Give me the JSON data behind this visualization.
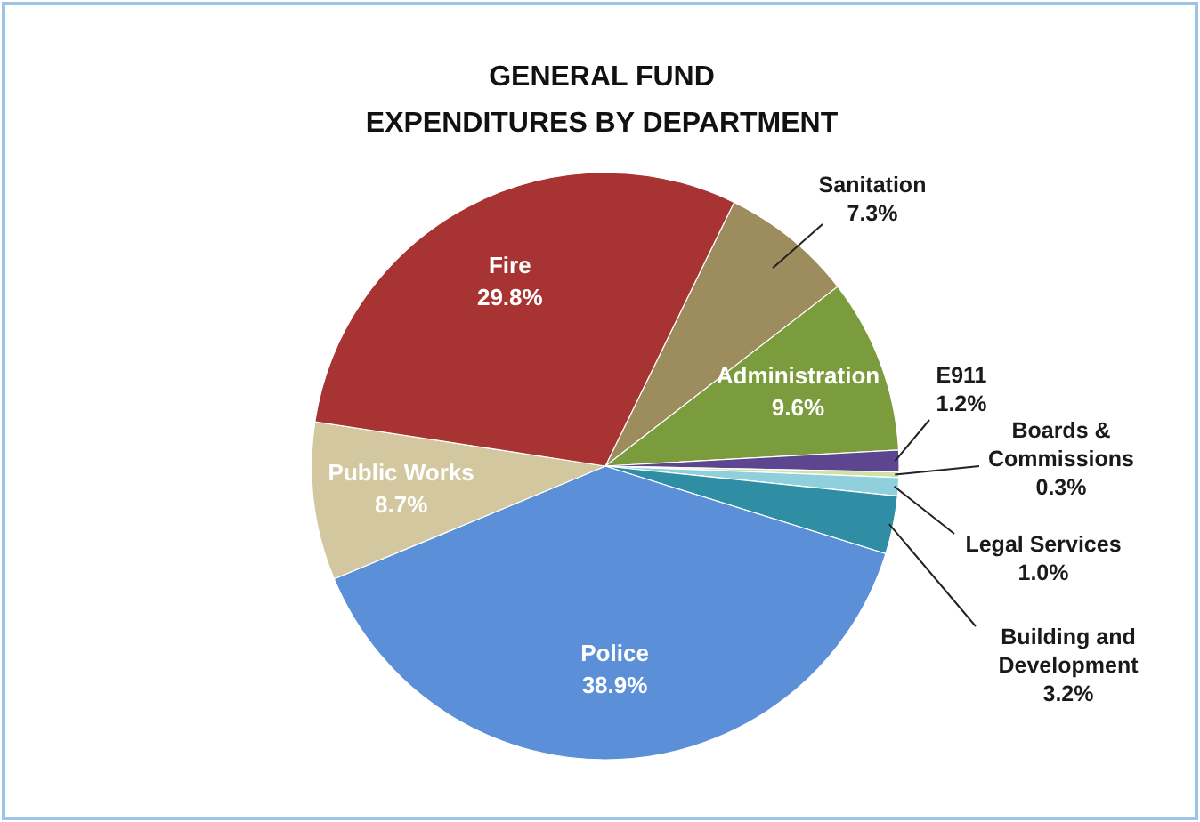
{
  "chart_data": {
    "type": "pie",
    "title": "GENERAL FUND\nEXPENDITURES BY DEPARTMENT",
    "categories": [
      "Sanitation",
      "Administration",
      "E911",
      "Boards & Commissions",
      "Legal Services",
      "Building and Development",
      "Police",
      "Public Works",
      "Fire"
    ],
    "values": [
      7.3,
      9.6,
      1.2,
      0.3,
      1.0,
      3.2,
      38.9,
      8.7,
      29.8
    ],
    "value_labels": [
      "7.3%",
      "9.6%",
      "1.2%",
      "0.3%",
      "1.0%",
      "3.2%",
      "38.9%",
      "8.7%",
      "29.8%"
    ],
    "colors": [
      "#9c8c5e",
      "#7b9c3c",
      "#5e4590",
      "#cfe3a6",
      "#8fd0dc",
      "#2f8ea3",
      "#5b8fd8",
      "#d3c79f",
      "#a83333"
    ]
  }
}
